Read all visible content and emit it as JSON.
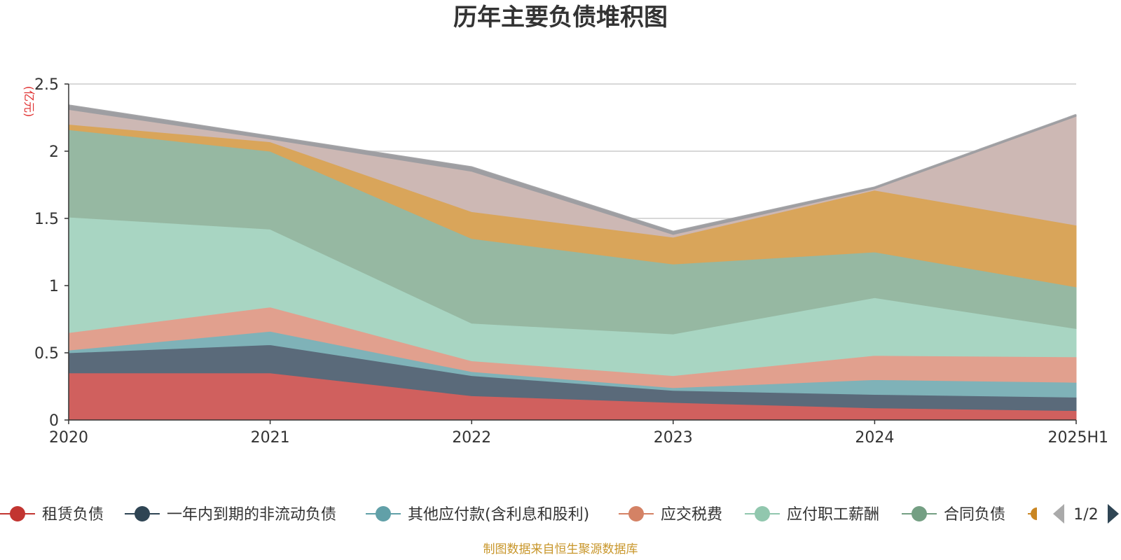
{
  "chart_data": {
    "type": "area",
    "stacked": true,
    "title": "历年主要负债堆积图",
    "unit_label": "(亿元)",
    "x": [
      "2020",
      "2021",
      "2022",
      "2023",
      "2024",
      "2025H1"
    ],
    "ylim": [
      0,
      2.5
    ],
    "yticks": [
      "0",
      "0.5",
      "1",
      "1.5",
      "2",
      "2.5"
    ],
    "grid": true,
    "legend_position": "bottom",
    "series": [
      {
        "name": "租赁负债",
        "color": "#d0605e",
        "values": [
          0.35,
          0.35,
          0.18,
          0.13,
          0.09,
          0.07
        ]
      },
      {
        "name": "一年内到期的非流动负债",
        "color": "#5a6a7a",
        "values": [
          0.15,
          0.21,
          0.15,
          0.09,
          0.1,
          0.1
        ]
      },
      {
        "name": "其他应付款(含利息和股利)",
        "color": "#7fb2b8",
        "values": [
          0.02,
          0.1,
          0.03,
          0.02,
          0.11,
          0.11
        ]
      },
      {
        "name": "应交税费",
        "color": "#e1a08e",
        "values": [
          0.13,
          0.18,
          0.08,
          0.09,
          0.18,
          0.19
        ]
      },
      {
        "name": "应付职工薪酬",
        "color": "#a8d5c2",
        "values": [
          0.86,
          0.58,
          0.28,
          0.31,
          0.43,
          0.21
        ]
      },
      {
        "name": "合同负债",
        "color": "#96b8a2",
        "values": [
          0.65,
          0.58,
          0.63,
          0.52,
          0.34,
          0.31
        ]
      },
      {
        "name": "",
        "color": "#d9a55a",
        "values": [
          0.04,
          0.07,
          0.2,
          0.2,
          0.46,
          0.46
        ]
      },
      {
        "name": "",
        "color": "#cdb8b4",
        "values": [
          0.11,
          0.02,
          0.3,
          0.02,
          0.01,
          0.81
        ]
      },
      {
        "name": "",
        "color": "#9e9ea2",
        "values": [
          0.03,
          0.02,
          0.03,
          0.02,
          0.01,
          0.01
        ]
      }
    ],
    "legend": [
      {
        "name": "租赁负债",
        "line_color": "#c23531",
        "marker_color": "#c23531"
      },
      {
        "name": "一年内到期的非流动负债",
        "line_color": "#2f4554",
        "marker_color": "#2f4554"
      },
      {
        "name": "其他应付款(含利息和股利)",
        "line_color": "#61a0a8",
        "marker_color": "#61a0a8"
      },
      {
        "name": "应交税费",
        "line_color": "#d48265",
        "marker_color": "#d48265"
      },
      {
        "name": "应付职工薪酬",
        "line_color": "#91c7ae",
        "marker_color": "#91c7ae"
      },
      {
        "name": "合同负债",
        "line_color": "#749f83",
        "marker_color": "#749f83"
      }
    ],
    "legend_partial_color": "#ca8622",
    "pager": "1/2",
    "source": "制图数据来自恒生聚源数据库"
  }
}
